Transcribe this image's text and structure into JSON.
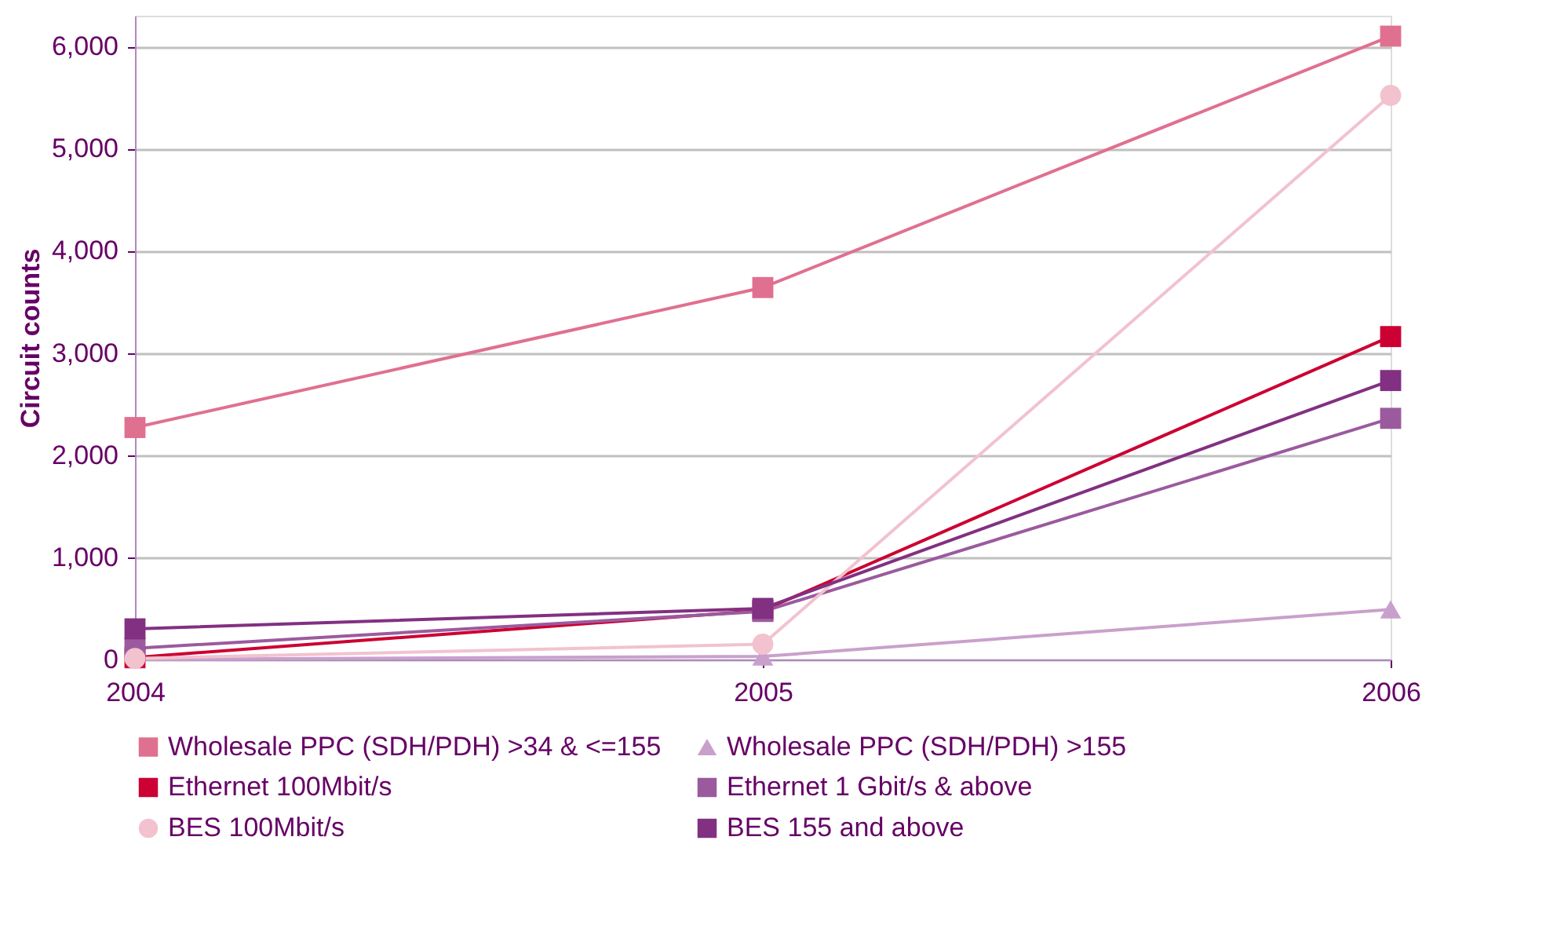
{
  "chart_data": {
    "type": "line",
    "ylabel": "Circuit counts",
    "categories": [
      "2004",
      "2005",
      "2006"
    ],
    "ylim": [
      0,
      6300
    ],
    "yticks": [
      {
        "value": 0,
        "label": "0"
      },
      {
        "value": 1000,
        "label": "1,000"
      },
      {
        "value": 2000,
        "label": "2,000"
      },
      {
        "value": 3000,
        "label": "3,000"
      },
      {
        "value": 4000,
        "label": "4,000"
      },
      {
        "value": 5000,
        "label": "5,000"
      },
      {
        "value": 6000,
        "label": "6,000"
      }
    ],
    "grid": "y",
    "legend": "bottom",
    "series": [
      {
        "name": "Wholesale PPC (SDH/PDH) >34 & <=155",
        "color": "#e07090",
        "marker": "square",
        "values": [
          2270,
          3640,
          6100
        ]
      },
      {
        "name": "Wholesale PPC (SDH/PDH) >155",
        "color": "#c9a0cc",
        "marker": "triangle",
        "values": [
          0,
          30,
          490
        ]
      },
      {
        "name": "Ethernet 100Mbit/s",
        "color": "#cc0033",
        "marker": "square",
        "values": [
          20,
          480,
          3160
        ]
      },
      {
        "name": "Ethernet 1 Gbit/s & above",
        "color": "#9b5a9e",
        "marker": "square",
        "values": [
          110,
          470,
          2360
        ]
      },
      {
        "name": "BES 100Mbit/s",
        "color": "#f2c2cf",
        "marker": "circle",
        "values": [
          10,
          150,
          5520
        ]
      },
      {
        "name": "BES 155 and above",
        "color": "#823082",
        "marker": "square",
        "values": [
          300,
          500,
          2730
        ]
      }
    ]
  }
}
